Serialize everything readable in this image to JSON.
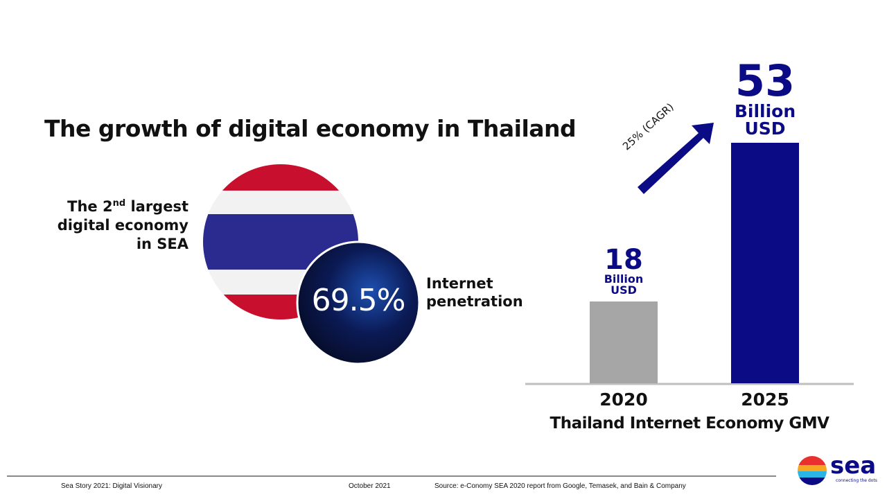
{
  "title": "The growth of digital economy in Thailand",
  "ranking": {
    "prefix": "The 2",
    "superscript": "nd",
    "rest": "largest digital economy in SEA"
  },
  "penetration": {
    "value_text": "69.5%",
    "label": "Internet penetration"
  },
  "chart_data": {
    "type": "bar",
    "categories": [
      "2020",
      "2025"
    ],
    "values": [
      18,
      53
    ],
    "value_units": [
      "Billion USD",
      "Billion USD"
    ],
    "colors": [
      "#a6a6a6",
      "#0b0b85"
    ],
    "x_label": "Thailand Internet Economy GMV",
    "annotation": "25% (CAGR)"
  },
  "footer": {
    "left": "Sea Story 2021: Digital Visionary",
    "date": "October 2021",
    "source": "Source: e-Conomy SEA 2020 report from Google, Temasek, and Bain & Company"
  },
  "logo": {
    "name": "sea",
    "tagline": "connecting the dots"
  }
}
